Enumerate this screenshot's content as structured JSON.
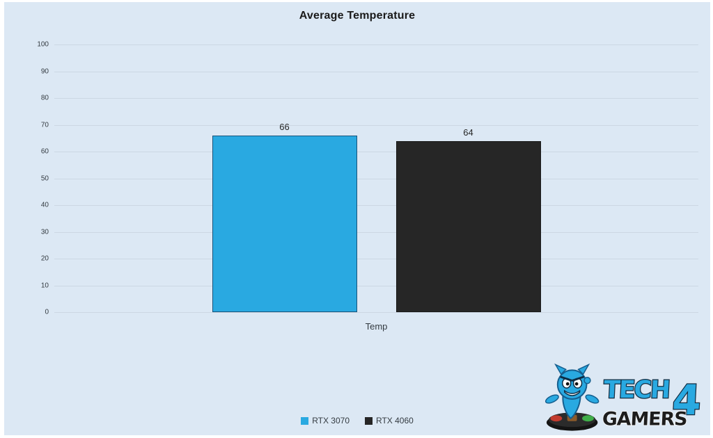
{
  "title": "Average Temperature",
  "colors": {
    "background": "#dce8f4",
    "gridline": "#ccd7e3",
    "text": "#262626",
    "brand_blue": "#29a9e1",
    "brand_dark": "#1d1d1d"
  },
  "chart_data": {
    "type": "bar",
    "categories": [
      "Temp"
    ],
    "series": [
      {
        "name": "RTX 3070",
        "values": [
          66
        ],
        "color": "#29a9e1",
        "border_color": "#17537a"
      },
      {
        "name": "RTX 4060",
        "values": [
          64
        ],
        "color": "#262626",
        "border_color": "#1a1a1a"
      }
    ],
    "title": "Average Temperature",
    "xlabel": "Temp",
    "ylabel": "",
    "ylim": [
      0,
      100
    ],
    "yticks": [
      0,
      10,
      20,
      30,
      40,
      50,
      60,
      70,
      80,
      90,
      100
    ],
    "grid": true,
    "legend_position": "bottom",
    "data_labels": true
  },
  "legend": {
    "items": [
      {
        "label": "RTX 3070",
        "color": "#29a9e1"
      },
      {
        "label": "RTX 4060",
        "color": "#262626"
      }
    ]
  },
  "watermark": {
    "brand_top": "TECH",
    "brand_num": "4",
    "brand_bottom": "GAMERS"
  }
}
